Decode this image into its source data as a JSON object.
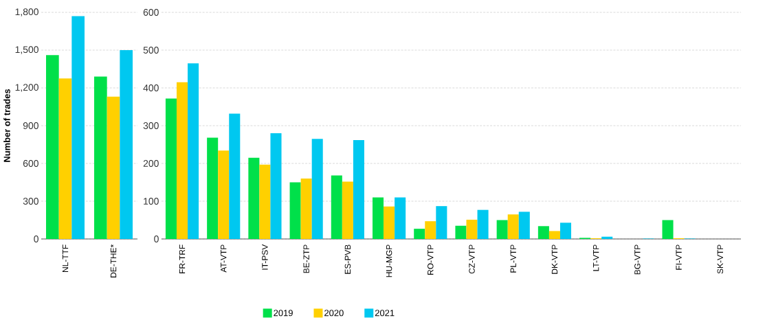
{
  "chart_data": [
    {
      "type": "bar",
      "ylabel": "Number of trades",
      "categories": [
        "NL-TTF",
        "DE-THE*"
      ],
      "series": [
        {
          "color": "#00e04a",
          "values": [
            1460,
            1290
          ]
        },
        {
          "color": "#ffd000",
          "values": [
            1275,
            1130
          ]
        },
        {
          "color": "#00c8f0",
          "values": [
            1770,
            1500
          ]
        }
      ],
      "ylim": [
        0,
        1800
      ],
      "yticks": [
        0,
        300,
        600,
        900,
        {
          "value": 1200,
          "label": "1,200"
        },
        {
          "value": 1500,
          "label": "1,500"
        },
        {
          "value": 1800,
          "label": "1,800"
        }
      ],
      "grid": "y",
      "legend": false
    },
    {
      "type": "bar",
      "categories": [
        "FR-TRF",
        "AT-VTP",
        "IT-PSV",
        "BE-ZTP",
        "ES-PVB",
        "HU-MGP",
        "RO-VTP",
        "CZ-VTP",
        "PL-VTP",
        "DK-VTP",
        "LT-VTP",
        "BG-VTP",
        "FI-VTP",
        "SK-VTP"
      ],
      "series": [
        {
          "name": "2019",
          "color": "#00e04a",
          "values": [
            372,
            268,
            215,
            150,
            168,
            110,
            27,
            35,
            50,
            34,
            3,
            0,
            50,
            0
          ]
        },
        {
          "name": "2020",
          "color": "#ffd000",
          "values": [
            415,
            234,
            197,
            160,
            152,
            86,
            47,
            51,
            65,
            21,
            2,
            0,
            2,
            0
          ]
        },
        {
          "name": "2021",
          "color": "#00c8f0",
          "values": [
            465,
            332,
            280,
            265,
            262,
            110,
            87,
            77,
            72,
            43,
            6,
            1,
            1,
            0
          ]
        }
      ],
      "ylim": [
        0,
        600
      ],
      "yticks": [
        0,
        100,
        200,
        300,
        400,
        500,
        600
      ],
      "grid": "y",
      "legend": "bottom"
    }
  ]
}
